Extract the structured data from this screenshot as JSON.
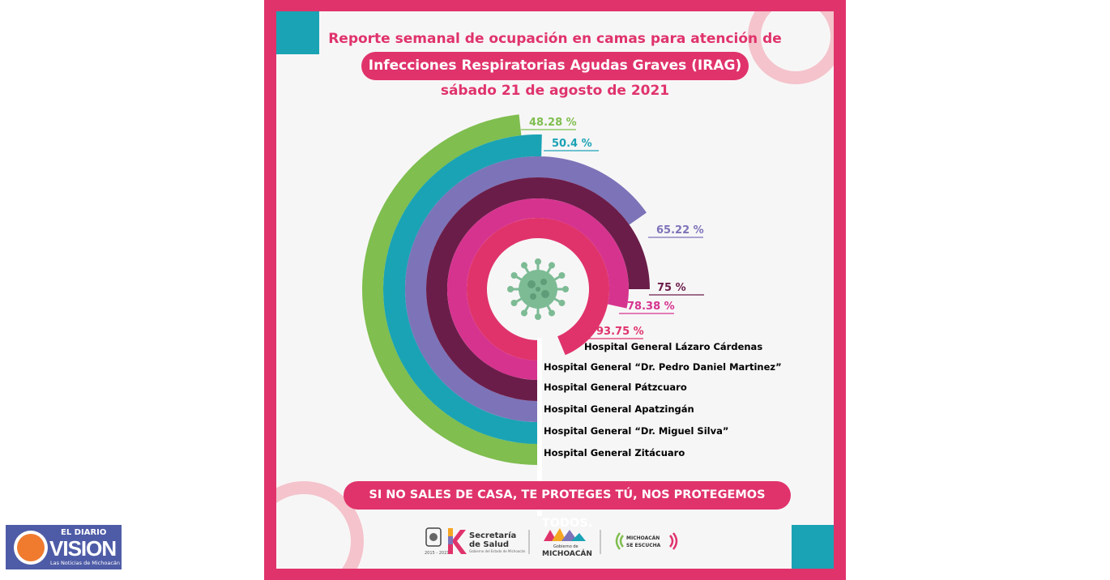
{
  "header": {
    "line1": "Reporte semanal de ocupación en camas para atención de",
    "line2": "Infecciones Respiratorias Agudas Graves (IRAG)",
    "line3": "sábado 21 de agosto de 2021"
  },
  "colors": {
    "primary": "#e0336b",
    "teal": "#1aa3b4",
    "green": "#7fbe4f",
    "purple": "#7d73b8",
    "maroon": "#6b1d49",
    "magenta": "#d6338f",
    "virus": "#7dbb95"
  },
  "chart_data": {
    "type": "radial bar",
    "unit": "%",
    "series": [
      {
        "label": "Hospital General Lázaro Cárdenas",
        "value": 93.75,
        "value_label": "93.75 %",
        "color": "#e0336b"
      },
      {
        "label": "Hospital General “Dr. Pedro Daniel Martinez”",
        "value": 78.38,
        "value_label": "78.38 %",
        "color": "#d6338f"
      },
      {
        "label": "Hospital General Pátzcuaro",
        "value": 75,
        "value_label": "75 %",
        "color": "#6b1d49"
      },
      {
        "label": "Hospital General Apatzingán",
        "value": 65.22,
        "value_label": "65.22 %",
        "color": "#7d73b8"
      },
      {
        "label": "Hospital General “Dr. Miguel Silva”",
        "value": 50.4,
        "value_label": "50.4 %",
        "color": "#1aa3b4"
      },
      {
        "label": "Hospital General Zitácuaro",
        "value": 48.28,
        "value_label": "48.28 %",
        "color": "#7fbe4f"
      }
    ]
  },
  "footer": {
    "slogan": "SI NO SALES DE CASA, TE PROTEGES TÚ, NOS PROTEGEMOS TODOS.",
    "logo1_line1": "Secretaría",
    "logo1_line2": "de Salud",
    "logo1_small": "Gobierno del Estado de Michoacán",
    "logo2_small": "Gobierno de",
    "logo2_main": "MICHOACÁN",
    "logo3_line1": "MICHOACÁN",
    "logo3_line2": "SE ESCUCHA",
    "years": "2015 - 2021"
  },
  "watermark": {
    "top": "EL DIARIO",
    "main": "VISION",
    "sub": "Las Noticias de Michoacán"
  }
}
